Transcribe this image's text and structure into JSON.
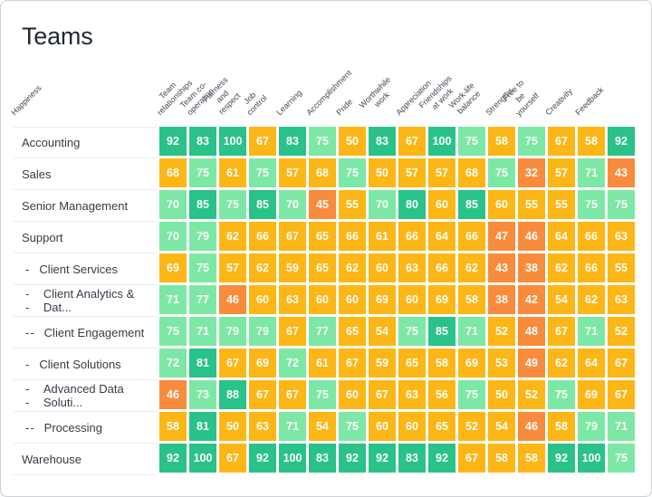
{
  "title": "Teams",
  "chart_data": {
    "type": "heatmap",
    "title": "Teams",
    "value_range": [
      0,
      100
    ],
    "columns": [
      "Happiness",
      "Team\nrelationships",
      "Team co-\noperation",
      "Fairness\nand\nrespect",
      "Job\ncontrol",
      "Learning",
      "Accomplishment",
      "Pride",
      "Worthwhile\nwork",
      "Appreciation",
      "Friendships\nat work",
      "Work-life\nbalance",
      "Strengths",
      "Free to\nbe\nyourself",
      "Creativity",
      "Feedback"
    ],
    "rows": [
      {
        "label": "Accounting",
        "prefix": "",
        "indent": 0,
        "values": [
          92,
          83,
          100,
          67,
          83,
          75,
          50,
          83,
          67,
          100,
          75,
          58,
          75,
          67,
          58,
          92
        ]
      },
      {
        "label": "Sales",
        "prefix": "",
        "indent": 0,
        "values": [
          68,
          75,
          61,
          75,
          57,
          68,
          75,
          50,
          57,
          57,
          68,
          75,
          32,
          57,
          71,
          43
        ]
      },
      {
        "label": "Senior Management",
        "prefix": "",
        "indent": 0,
        "values": [
          70,
          85,
          75,
          85,
          70,
          45,
          55,
          70,
          80,
          60,
          85,
          60,
          55,
          55,
          75,
          75
        ]
      },
      {
        "label": "Support",
        "prefix": "",
        "indent": 0,
        "values": [
          70,
          79,
          62,
          66,
          67,
          65,
          66,
          61,
          66,
          64,
          66,
          47,
          46,
          64,
          66,
          63
        ]
      },
      {
        "label": "Client Services",
        "prefix": "-",
        "indent": 1,
        "values": [
          69,
          75,
          57,
          62,
          59,
          65,
          62,
          60,
          63,
          66,
          62,
          43,
          38,
          62,
          66,
          55
        ]
      },
      {
        "label": "Client Analytics & Dat...",
        "prefix": "--",
        "indent": 2,
        "values": [
          71,
          77,
          46,
          60,
          63,
          60,
          60,
          69,
          60,
          69,
          58,
          38,
          42,
          54,
          62,
          63
        ]
      },
      {
        "label": "Client Engagement",
        "prefix": "--",
        "indent": 2,
        "values": [
          75,
          71,
          79,
          79,
          67,
          77,
          65,
          54,
          75,
          85,
          71,
          52,
          48,
          67,
          71,
          52
        ]
      },
      {
        "label": "Client Solutions",
        "prefix": "-",
        "indent": 1,
        "values": [
          72,
          81,
          67,
          69,
          72,
          61,
          67,
          59,
          65,
          58,
          69,
          53,
          49,
          62,
          64,
          67
        ]
      },
      {
        "label": "Advanced Data Soluti...",
        "prefix": "--",
        "indent": 2,
        "values": [
          46,
          73,
          88,
          67,
          67,
          75,
          60,
          67,
          63,
          56,
          75,
          50,
          52,
          75,
          69,
          67
        ]
      },
      {
        "label": "Processing",
        "prefix": "--",
        "indent": 2,
        "values": [
          58,
          81,
          50,
          63,
          71,
          54,
          75,
          60,
          60,
          65,
          52,
          54,
          46,
          58,
          79,
          71
        ]
      },
      {
        "label": "Warehouse",
        "prefix": "",
        "indent": 0,
        "values": [
          92,
          100,
          67,
          92,
          100,
          83,
          92,
          92,
          83,
          92,
          67,
          58,
          58,
          92,
          100,
          75
        ]
      }
    ],
    "color_scale": {
      "green": "#29c289",
      "green_min": 80,
      "light_green": "#7de8a5",
      "light_green_min": 70,
      "amber": "#fcb616",
      "amber_min": 50,
      "orange": "#f98b3d"
    }
  }
}
